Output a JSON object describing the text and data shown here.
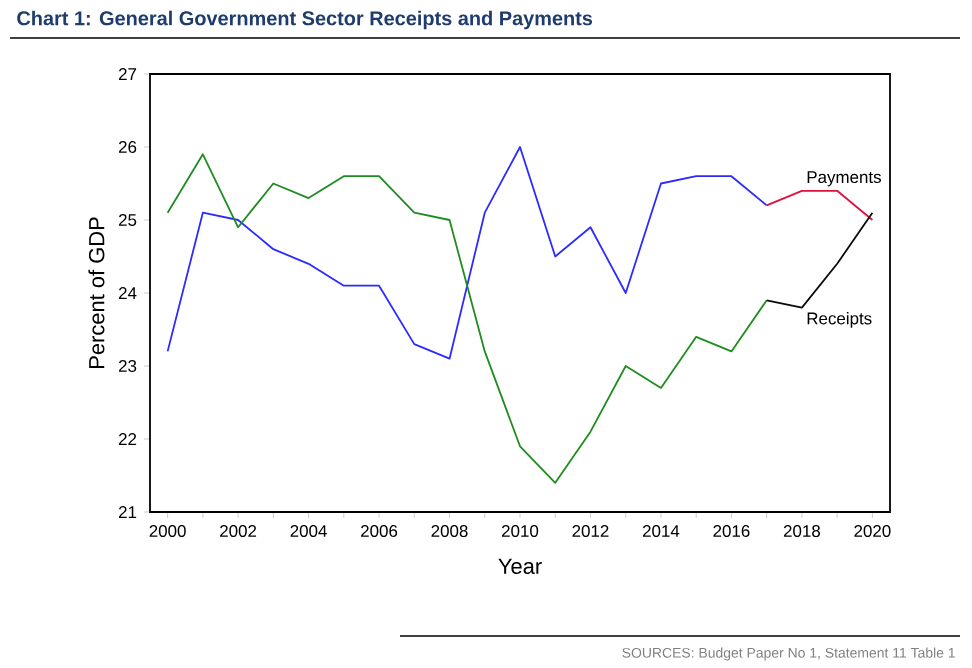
{
  "chart_data": {
    "type": "line",
    "title": "Chart 1: General Government Sector Receipts and Payments",
    "xlabel": "Year",
    "ylabel": "Percent of GDP",
    "series": [
      {
        "color": "#2b2bff",
        "x": [
          2000,
          2001,
          2002,
          2003,
          2004,
          2005,
          2006,
          2007,
          2008,
          2009,
          2010,
          2011,
          2012,
          2013,
          2014,
          2015,
          2016,
          2017
        ],
        "values": [
          23.2,
          25.1,
          25.0,
          24.6,
          24.4,
          24.1,
          24.1,
          23.3,
          23.1,
          25.1,
          26.0,
          24.5,
          24.9,
          24.0,
          25.5,
          25.6,
          25.6,
          25.2
        ]
      },
      {
        "name": "Payments",
        "color": "#e0103c",
        "x": [
          2017,
          2018,
          2019,
          2020
        ],
        "values": [
          25.2,
          25.4,
          25.4,
          25.0
        ]
      },
      {
        "color": "#1e8c1e",
        "x": [
          2000,
          2001,
          2002,
          2003,
          2004,
          2005,
          2006,
          2007,
          2008,
          2009,
          2010,
          2011,
          2012,
          2013,
          2014,
          2015,
          2016,
          2017
        ],
        "values": [
          25.1,
          25.9,
          24.9,
          25.5,
          25.3,
          25.6,
          25.6,
          25.1,
          25.0,
          23.2,
          21.9,
          21.4,
          22.1,
          23.0,
          22.7,
          23.4,
          23.2,
          23.9
        ]
      },
      {
        "name": "Receipts",
        "color": "#0a0a0a",
        "x": [
          2017,
          2018,
          2019,
          2020
        ],
        "values": [
          23.9,
          23.8,
          24.4,
          25.1
        ]
      }
    ],
    "annotations": [
      "SOURCES: Budget Paper No 1, Statement 11 Table 1"
    ],
    "xlim": [
      1999.5,
      2020.5
    ],
    "ylim": [
      21,
      27
    ],
    "xticks": [
      2000,
      {
        "value": 2001,
        "label": null
      },
      2002,
      {
        "value": 2003,
        "label": null
      },
      2004,
      {
        "value": 2005,
        "label": null
      },
      2006,
      {
        "value": 2007,
        "label": null
      },
      2008,
      {
        "value": 2009,
        "label": null
      },
      2010,
      {
        "value": 2011,
        "label": null
      },
      2012,
      {
        "value": 2013,
        "label": null
      },
      2014,
      {
        "value": 2015,
        "label": null
      },
      2016,
      {
        "value": 2017,
        "label": null
      },
      2018,
      {
        "value": 2019,
        "label": null
      },
      2020
    ],
    "yticks": [
      21,
      22,
      23,
      24,
      25,
      26,
      27
    ],
    "grid": false
  }
}
